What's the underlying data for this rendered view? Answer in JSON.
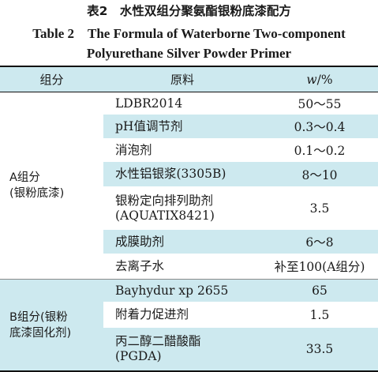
{
  "caption": {
    "cn": "表2　水性双组分聚氨酯银粉底漆配方",
    "en_line1": "Table 2　The Formula of Waterborne Two-component",
    "en_line2": "Polyurethane Silver Powder Primer"
  },
  "header": {
    "component": "组分",
    "material": "原料",
    "w_symbol": "w",
    "w_unit": "/%"
  },
  "groups": [
    {
      "label_line1": "A组分",
      "label_line2": "(银粉底漆)",
      "rows": [
        {
          "material": "LDBR2014",
          "value": "50～55"
        },
        {
          "material": "pH值调节剂",
          "value": "0.3～0.4"
        },
        {
          "material": "消泡剂",
          "value": "0.1～0.2"
        },
        {
          "material": "水性铝银浆(3305B)",
          "value": "8～10"
        },
        {
          "material_line1": "银粉定向排列助剂",
          "material_line2": "(AQUATIX8421)",
          "value": "3.5"
        },
        {
          "material": "成膜助剂",
          "value": "6～8"
        },
        {
          "material": "去离子水",
          "value": "补至100(A组分)"
        }
      ]
    },
    {
      "label_line1": "B组分(银粉",
      "label_line2": "底漆固化剂)",
      "rows": [
        {
          "material": "Bayhydur xp 2655",
          "value": "65"
        },
        {
          "material": "附着力促进剂",
          "value": "1.5"
        },
        {
          "material_line1": "丙二醇二醋酸酯",
          "material_line2": "(PGDA)",
          "value": "33.5"
        }
      ]
    }
  ],
  "colors": {
    "shade": "#cde9ef",
    "rule": "#111111"
  }
}
